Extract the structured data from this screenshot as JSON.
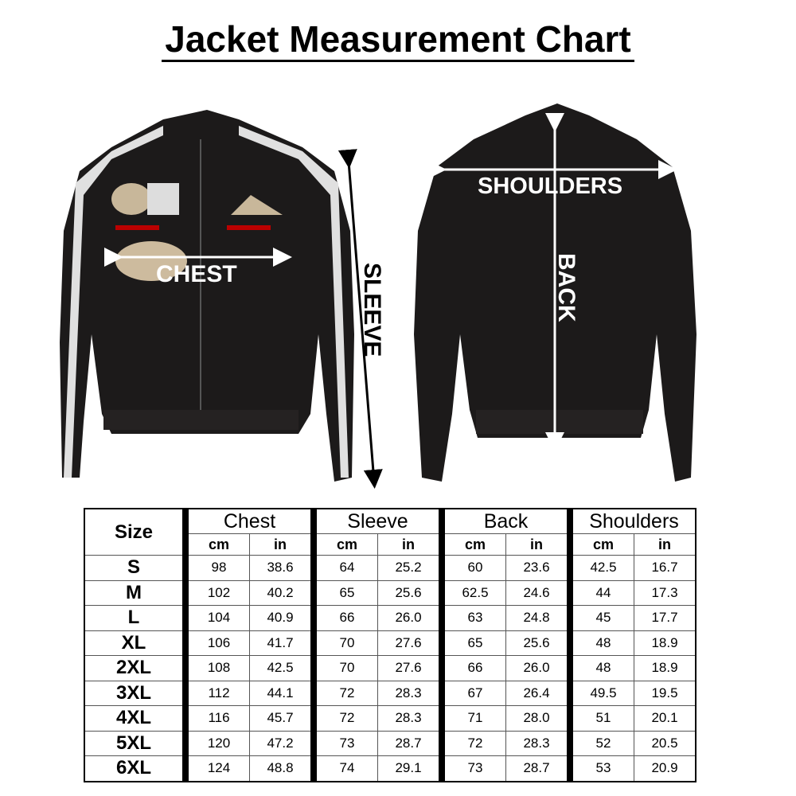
{
  "title": "Jacket Measurement Chart",
  "labels": {
    "chest": "CHEST",
    "sleeve": "SLEEVE",
    "shoulders": "SHOULDERS",
    "back": "BACK"
  },
  "colors": {
    "jacket": "#1c1a1a",
    "stripe": "#e8e8e8",
    "text": "#000000"
  },
  "table": {
    "size_header": "Size",
    "groups": [
      "Chest",
      "Sleeve",
      "Back",
      "Shoulders"
    ],
    "units": [
      "cm",
      "in"
    ],
    "rows": [
      {
        "size": "S",
        "values": [
          "98",
          "38.6",
          "64",
          "25.2",
          "60",
          "23.6",
          "42.5",
          "16.7"
        ]
      },
      {
        "size": "M",
        "values": [
          "102",
          "40.2",
          "65",
          "25.6",
          "62.5",
          "24.6",
          "44",
          "17.3"
        ]
      },
      {
        "size": "L",
        "values": [
          "104",
          "40.9",
          "66",
          "26.0",
          "63",
          "24.8",
          "45",
          "17.7"
        ]
      },
      {
        "size": "XL",
        "values": [
          "106",
          "41.7",
          "70",
          "27.6",
          "65",
          "25.6",
          "48",
          "18.9"
        ]
      },
      {
        "size": "2XL",
        "values": [
          "108",
          "42.5",
          "70",
          "27.6",
          "66",
          "26.0",
          "48",
          "18.9"
        ]
      },
      {
        "size": "3XL",
        "values": [
          "112",
          "44.1",
          "72",
          "28.3",
          "67",
          "26.4",
          "49.5",
          "19.5"
        ]
      },
      {
        "size": "4XL",
        "values": [
          "116",
          "45.7",
          "72",
          "28.3",
          "71",
          "28.0",
          "51",
          "20.1"
        ]
      },
      {
        "size": "5XL",
        "values": [
          "120",
          "47.2",
          "73",
          "28.7",
          "72",
          "28.3",
          "52",
          "20.5"
        ]
      },
      {
        "size": "6XL",
        "values": [
          "124",
          "48.8",
          "74",
          "29.1",
          "73",
          "28.7",
          "53",
          "20.9"
        ]
      }
    ]
  }
}
